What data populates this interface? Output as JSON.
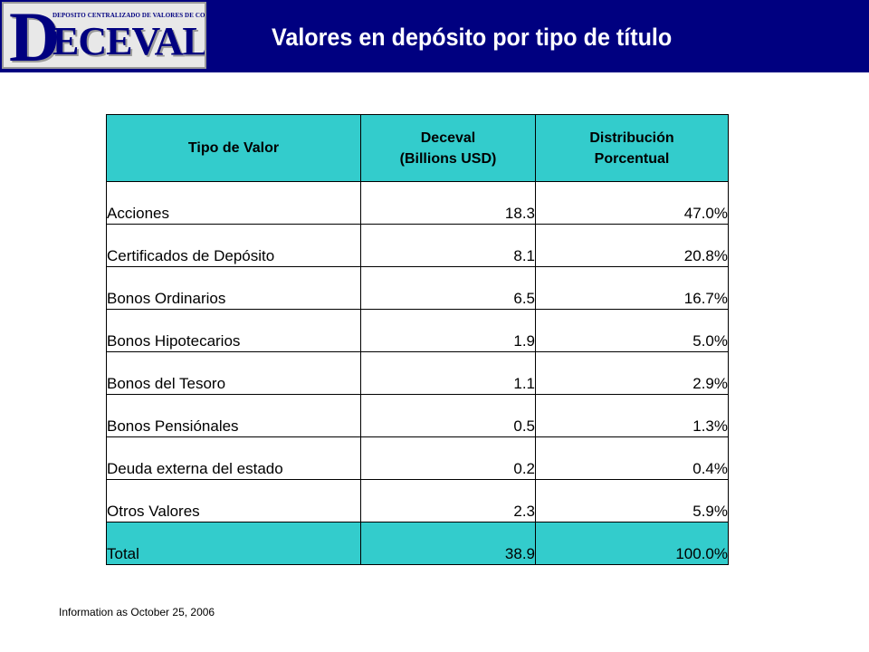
{
  "header": {
    "logo_subtitle": "DEPOSITO CENTRALIZADO DE VALORES DE COLOMBIA",
    "logo_initial": "D",
    "logo_rest": "ECEVAL S.A.",
    "title": "Valores en depósito por tipo de título",
    "bar_color": "#000080"
  },
  "table": {
    "header_color": "#33cccc",
    "columns": [
      {
        "line1": "Tipo de Valor",
        "line2": ""
      },
      {
        "line1": "Deceval",
        "line2": "(Billions USD)"
      },
      {
        "line1": "Distribución",
        "line2": "Porcentual"
      }
    ],
    "rows": [
      {
        "tipo": "Acciones",
        "valor": "18.3",
        "pct": "47.0%"
      },
      {
        "tipo": "Certificados de Depósito",
        "valor": "8.1",
        "pct": "20.8%"
      },
      {
        "tipo": "Bonos Ordinarios",
        "valor": "6.5",
        "pct": "16.7%"
      },
      {
        "tipo": "Bonos Hipotecarios",
        "valor": "1.9",
        "pct": "5.0%"
      },
      {
        "tipo": "Bonos del Tesoro",
        "valor": "1.1",
        "pct": "2.9%"
      },
      {
        "tipo": "Bonos Pensiónales",
        "valor": "0.5",
        "pct": "1.3%"
      },
      {
        "tipo": "Deuda externa del estado",
        "valor": "0.2",
        "pct": "0.4%"
      },
      {
        "tipo": "Otros Valores",
        "valor": "2.3",
        "pct": "5.9%"
      }
    ],
    "total": {
      "tipo": "Total",
      "valor": "38.9",
      "pct": "100.0%"
    }
  },
  "footnote": "Information as October 25, 2006"
}
